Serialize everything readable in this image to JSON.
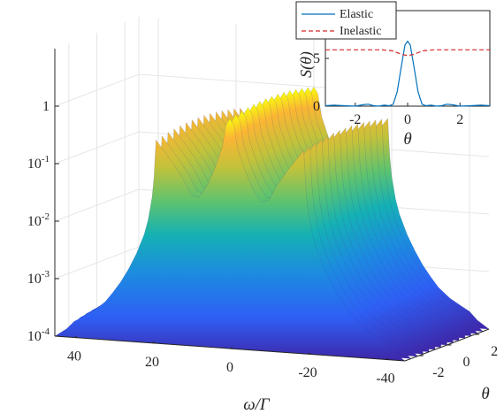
{
  "chart_data": [
    {
      "type": "surface",
      "zscale": "log",
      "zlim": [
        0.0001,
        10
      ],
      "xlim": [
        45,
        -45
      ],
      "ylim": [
        -3,
        3
      ],
      "xlabel": "ω/Γ",
      "ylabel": "θ",
      "zlabel": "",
      "x_ticks": [
        "40",
        "20",
        "0",
        "-20",
        "-40"
      ],
      "x_tick_values": [
        40,
        20,
        0,
        -20,
        -40
      ],
      "y_ticks": [
        "-2",
        "0",
        "2"
      ],
      "y_tick_values": [
        -2,
        0,
        2
      ],
      "z_ticks": [
        {
          "base": "10",
          "exp": "-4",
          "value": 0.0001
        },
        {
          "base": "10",
          "exp": "-3",
          "value": 0.001
        },
        {
          "base": "10",
          "exp": "-2",
          "value": 0.01
        },
        {
          "base": "10",
          "exp": "-1",
          "value": 0.1
        },
        {
          "base": "1",
          "exp": "",
          "value": 1
        }
      ],
      "grid": true,
      "colormap": "parula",
      "series": [
        {
          "x": [
            45,
            42,
            40,
            38,
            35,
            32,
            30,
            28,
            26,
            24,
            22,
            21,
            20,
            19.5,
            19,
            17,
            15,
            12,
            10,
            8,
            6,
            4,
            2,
            1,
            0,
            -1,
            -2,
            -4,
            -6,
            -8,
            -10,
            -12,
            -15,
            -17,
            -19,
            -19.5,
            -20,
            -21,
            -22,
            -24,
            -26,
            -28,
            -30,
            -32,
            -35,
            -38,
            -40,
            -42,
            -45
          ],
          "values": [
            0.00012,
            0.00018,
            0.00025,
            0.0003,
            0.0004,
            0.0006,
            0.0009,
            0.0014,
            0.0024,
            0.0045,
            0.01,
            0.018,
            0.045,
            0.1,
            0.45,
            0.3,
            0.2,
            0.1,
            0.055,
            0.05,
            0.08,
            0.16,
            0.4,
            1.0,
            1.3,
            1.0,
            0.4,
            0.16,
            0.08,
            0.05,
            0.055,
            0.1,
            0.2,
            0.3,
            0.45,
            0.1,
            0.045,
            0.018,
            0.01,
            0.0045,
            0.0024,
            0.0014,
            0.0009,
            0.0006,
            0.0004,
            0.0003,
            0.00025,
            0.00018,
            0.00012
          ]
        }
      ]
    },
    {
      "type": "line",
      "title": "",
      "xlabel": "θ",
      "ylabel": "S(θ)",
      "xlim": [
        -3.14,
        3.14
      ],
      "ylim": [
        0,
        10
      ],
      "x_ticks": [
        "-2",
        "0",
        "2"
      ],
      "y_ticks": [
        "0",
        "5"
      ],
      "legend_position": "top",
      "legend": [
        "Elastic",
        "Inelastic"
      ],
      "series": [
        {
          "name": "Elastic",
          "color": "#0072bd",
          "style": "solid",
          "x": [
            -3.14,
            -2.8,
            -2.4,
            -2.0,
            -1.7,
            -1.5,
            -1.3,
            -1.1,
            -0.9,
            -0.7,
            -0.55,
            -0.4,
            -0.25,
            -0.1,
            0,
            0.1,
            0.25,
            0.4,
            0.55,
            0.7,
            0.9,
            1.1,
            1.3,
            1.5,
            1.7,
            2.0,
            2.4,
            2.8,
            3.14
          ],
          "values": [
            0.05,
            0.1,
            0.05,
            0.0,
            0.15,
            0.2,
            0.05,
            0.0,
            0.1,
            0.05,
            0.2,
            1.5,
            4.0,
            6.4,
            6.8,
            6.4,
            4.0,
            1.5,
            0.2,
            0.05,
            0.1,
            0.0,
            0.05,
            0.2,
            0.15,
            0.0,
            0.05,
            0.1,
            0.05
          ]
        },
        {
          "name": "Inelastic",
          "color": "#d62728",
          "style": "dashed",
          "x": [
            -3.14,
            -2.0,
            -1.0,
            -0.6,
            -0.4,
            -0.2,
            0,
            0.2,
            0.4,
            0.6,
            1.0,
            2.0,
            3.14
          ],
          "values": [
            5.9,
            5.9,
            5.9,
            5.8,
            5.6,
            5.4,
            5.3,
            5.4,
            5.6,
            5.8,
            5.9,
            5.9,
            5.9
          ]
        }
      ]
    }
  ]
}
